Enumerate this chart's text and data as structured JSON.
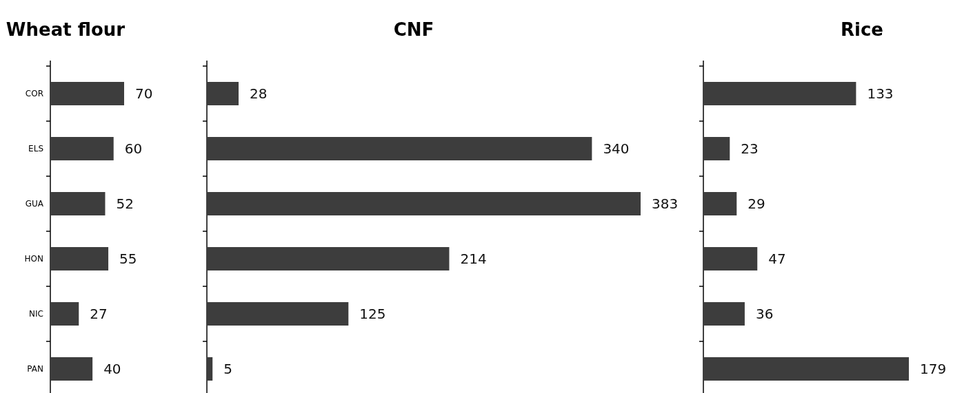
{
  "chart_data": [
    {
      "type": "bar",
      "title": "Wheat flour",
      "orientation": "horizontal",
      "categories": [
        "COR",
        "ELS",
        "GUA",
        "HON",
        "NIC",
        "PAN"
      ],
      "values": [
        70,
        60,
        52,
        55,
        27,
        40
      ],
      "color": "#3d3d3d",
      "data_labels": true,
      "tick_labels": "y"
    },
    {
      "type": "bar",
      "title": "CNF",
      "orientation": "horizontal",
      "categories": [
        null,
        null,
        null,
        null,
        null,
        null
      ],
      "values": [
        28,
        340,
        383,
        214,
        125,
        5
      ],
      "color": "#3d3d3d",
      "data_labels": true,
      "tick_labels": false
    },
    {
      "type": "bar",
      "title": "Rice",
      "orientation": "horizontal",
      "categories": [
        null,
        null,
        null,
        null,
        null,
        null
      ],
      "values": [
        133,
        23,
        29,
        47,
        36,
        179
      ],
      "color": "#3d3d3d",
      "data_labels": true,
      "tick_labels": false
    }
  ]
}
